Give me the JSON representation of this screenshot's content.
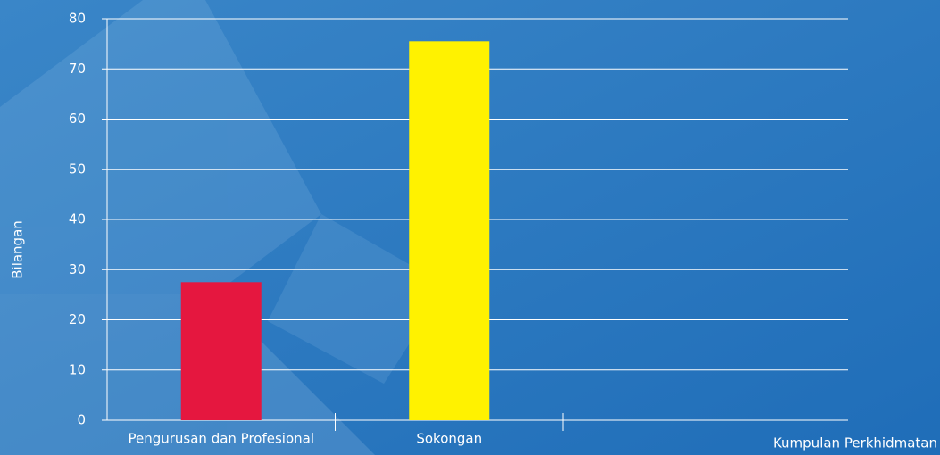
{
  "chart_data": {
    "type": "bar",
    "y_label": "Bilangan",
    "x_label": "Kumpulan Perkhidmatan",
    "categories": [
      "Pengurusan dan Profesional",
      "Sokongan"
    ],
    "values": [
      27.5,
      75.5
    ],
    "colors": [
      "#e5173f",
      "#fff200"
    ],
    "ylim": [
      0,
      80
    ],
    "yticks": [
      0,
      10,
      20,
      30,
      40,
      50,
      60,
      70,
      80
    ],
    "grid": true
  }
}
